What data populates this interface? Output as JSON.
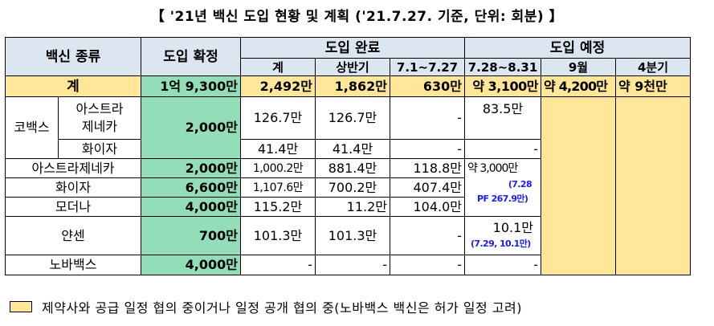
{
  "title": "【 '21년 백신 도입 현황 및 계획 ('21.7.27. 기준, 단위: 회분) 】",
  "headers": {
    "vaccine_type": "백신 종류",
    "confirmed": "도입 확정",
    "completed": "도입 완료",
    "planned": "도입 예정",
    "total": "계",
    "first_half": "상반기",
    "jul": "7.1~7.27",
    "jul_aug": "7.28~8.31",
    "sep": "9월",
    "q4": "4분기"
  },
  "total_row": {
    "label": "계",
    "confirmed": "1억 9,300만",
    "total": "2,492만",
    "first_half": "1,862만",
    "jul": "630만",
    "jul_aug": "약 3,100만",
    "sep": "약 4,200만",
    "q4": "약 9천만"
  },
  "rows": {
    "covax": "코백스",
    "covax_az": {
      "label_line1": "아스트라",
      "label_line2": "제네카",
      "confirmed": "2,000만",
      "total": "126.7만",
      "first_half": "126.7만",
      "jul": "-",
      "jul_aug": "83.5만"
    },
    "covax_pf": {
      "label": "화이자",
      "total": "41.4만",
      "first_half": "41.4만",
      "jul": "-",
      "jul_aug": "-"
    },
    "az": {
      "label": "아스트라제네카",
      "confirmed": "2,000만",
      "total": "1,000.2만",
      "first_half": "881.4만",
      "jul": "118.8만",
      "jul_aug_main": "약 3,000만",
      "jul_aug_note1": "(7.28",
      "jul_aug_note2": "PF 267.9만)"
    },
    "pfizer": {
      "label": "화이자",
      "confirmed": "6,600만",
      "total": "1,107.6만",
      "first_half": "700.2만",
      "jul": "407.4만"
    },
    "moderna": {
      "label": "모더나",
      "confirmed": "4,000만",
      "total": "115.2만",
      "first_half": "11.2만",
      "jul": "104.0만"
    },
    "janssen": {
      "label": "얀센",
      "confirmed": "700만",
      "total": "101.3만",
      "first_half": "101.3만",
      "jul": "-",
      "jul_aug_main": "10.1만",
      "jul_aug_note": "(7.29, 10.1만)"
    },
    "novavax": {
      "label": "노바백스",
      "confirmed": "4,000만",
      "total": "-",
      "first_half": "-",
      "jul": "-",
      "jul_aug": "-"
    }
  },
  "legend": "제약사와 공급 일정 협의 중이거나 일정 공개 협의 중(노바백스 백신은 허가 일정 고려)",
  "colors": {
    "header_bg": "#dce6f1",
    "confirmed_bg": "#93ddb9",
    "planned_bg": "#ffe699",
    "note_text": "#1a1aff"
  }
}
